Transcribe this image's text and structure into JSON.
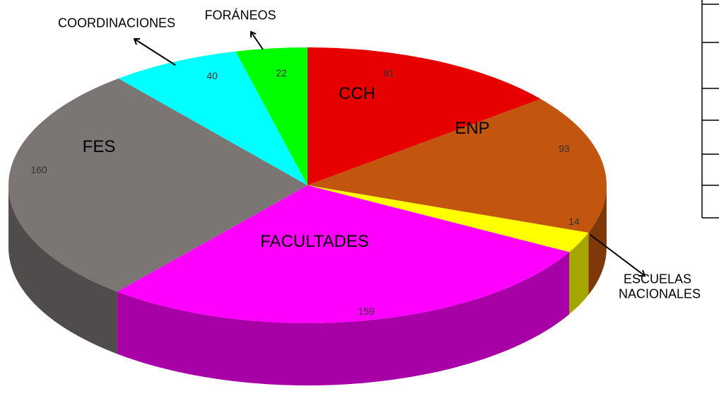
{
  "chart_data": {
    "type": "pie",
    "categories": [
      "CCH",
      "ENP",
      "ESCUELAS NACIONALES",
      "FACULTADES",
      "FES",
      "COORDINACIONES",
      "FORÁNEOS"
    ],
    "values": [
      81,
      93,
      14,
      159,
      160,
      40,
      22
    ],
    "colors": [
      "#e60000",
      "#c2560f",
      "#ffff00",
      "#ff00ff",
      "#7b7574",
      "#00ffff",
      "#00ff00"
    ]
  }
}
